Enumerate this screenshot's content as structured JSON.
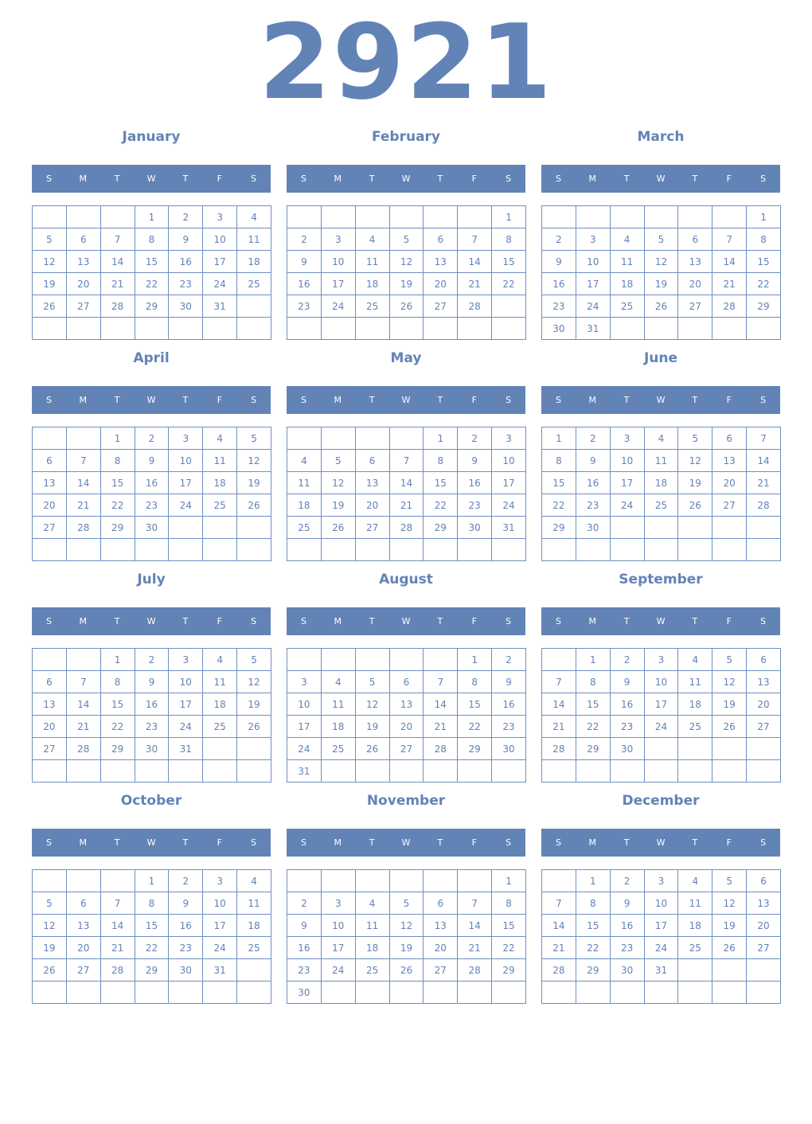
{
  "year": "2921",
  "weekdays": [
    "S",
    "M",
    "T",
    "W",
    "T",
    "F",
    "S"
  ],
  "colors": {
    "accent": "#6283b6",
    "header_text": "#ffffff"
  },
  "months": [
    {
      "name": "January",
      "weeks": [
        [
          null,
          null,
          null,
          1,
          2,
          3,
          4
        ],
        [
          5,
          6,
          7,
          8,
          9,
          10,
          11
        ],
        [
          12,
          13,
          14,
          15,
          16,
          17,
          18
        ],
        [
          19,
          20,
          21,
          22,
          23,
          24,
          25
        ],
        [
          26,
          27,
          28,
          29,
          30,
          31,
          null
        ],
        [
          null,
          null,
          null,
          null,
          null,
          null,
          null
        ]
      ]
    },
    {
      "name": "February",
      "weeks": [
        [
          null,
          null,
          null,
          null,
          null,
          null,
          1
        ],
        [
          2,
          3,
          4,
          5,
          6,
          7,
          8
        ],
        [
          9,
          10,
          11,
          12,
          13,
          14,
          15
        ],
        [
          16,
          17,
          18,
          19,
          20,
          21,
          22
        ],
        [
          23,
          24,
          25,
          26,
          27,
          28,
          null
        ],
        [
          null,
          null,
          null,
          null,
          null,
          null,
          null
        ]
      ]
    },
    {
      "name": "March",
      "weeks": [
        [
          null,
          null,
          null,
          null,
          null,
          null,
          1
        ],
        [
          2,
          3,
          4,
          5,
          6,
          7,
          8
        ],
        [
          9,
          10,
          11,
          12,
          13,
          14,
          15
        ],
        [
          16,
          17,
          18,
          19,
          20,
          21,
          22
        ],
        [
          23,
          24,
          25,
          26,
          27,
          28,
          29
        ],
        [
          30,
          31,
          null,
          null,
          null,
          null,
          null
        ]
      ]
    },
    {
      "name": "April",
      "weeks": [
        [
          null,
          null,
          1,
          2,
          3,
          4,
          5
        ],
        [
          6,
          7,
          8,
          9,
          10,
          11,
          12
        ],
        [
          13,
          14,
          15,
          16,
          17,
          18,
          19
        ],
        [
          20,
          21,
          22,
          23,
          24,
          25,
          26
        ],
        [
          27,
          28,
          29,
          30,
          null,
          null,
          null
        ],
        [
          null,
          null,
          null,
          null,
          null,
          null,
          null
        ]
      ]
    },
    {
      "name": "May",
      "weeks": [
        [
          null,
          null,
          null,
          null,
          1,
          2,
          3
        ],
        [
          4,
          5,
          6,
          7,
          8,
          9,
          10
        ],
        [
          11,
          12,
          13,
          14,
          15,
          16,
          17
        ],
        [
          18,
          19,
          20,
          21,
          22,
          23,
          24
        ],
        [
          25,
          26,
          27,
          28,
          29,
          30,
          31
        ],
        [
          null,
          null,
          null,
          null,
          null,
          null,
          null
        ]
      ]
    },
    {
      "name": "June",
      "weeks": [
        [
          1,
          2,
          3,
          4,
          5,
          6,
          7
        ],
        [
          8,
          9,
          10,
          11,
          12,
          13,
          14
        ],
        [
          15,
          16,
          17,
          18,
          19,
          20,
          21
        ],
        [
          22,
          23,
          24,
          25,
          26,
          27,
          28
        ],
        [
          29,
          30,
          null,
          null,
          null,
          null,
          null
        ],
        [
          null,
          null,
          null,
          null,
          null,
          null,
          null
        ]
      ]
    },
    {
      "name": "July",
      "weeks": [
        [
          null,
          null,
          1,
          2,
          3,
          4,
          5
        ],
        [
          6,
          7,
          8,
          9,
          10,
          11,
          12
        ],
        [
          13,
          14,
          15,
          16,
          17,
          18,
          19
        ],
        [
          20,
          21,
          22,
          23,
          24,
          25,
          26
        ],
        [
          27,
          28,
          29,
          30,
          31,
          null,
          null
        ],
        [
          null,
          null,
          null,
          null,
          null,
          null,
          null
        ]
      ]
    },
    {
      "name": "August",
      "weeks": [
        [
          null,
          null,
          null,
          null,
          null,
          1,
          2
        ],
        [
          3,
          4,
          5,
          6,
          7,
          8,
          9
        ],
        [
          10,
          11,
          12,
          13,
          14,
          15,
          16
        ],
        [
          17,
          18,
          19,
          20,
          21,
          22,
          23
        ],
        [
          24,
          25,
          26,
          27,
          28,
          29,
          30
        ],
        [
          31,
          null,
          null,
          null,
          null,
          null,
          null
        ]
      ]
    },
    {
      "name": "September",
      "weeks": [
        [
          null,
          1,
          2,
          3,
          4,
          5,
          6
        ],
        [
          7,
          8,
          9,
          10,
          11,
          12,
          13
        ],
        [
          14,
          15,
          16,
          17,
          18,
          19,
          20
        ],
        [
          21,
          22,
          23,
          24,
          25,
          26,
          27
        ],
        [
          28,
          29,
          30,
          null,
          null,
          null,
          null
        ],
        [
          null,
          null,
          null,
          null,
          null,
          null,
          null
        ]
      ]
    },
    {
      "name": "October",
      "weeks": [
        [
          null,
          null,
          null,
          1,
          2,
          3,
          4
        ],
        [
          5,
          6,
          7,
          8,
          9,
          10,
          11
        ],
        [
          12,
          13,
          14,
          15,
          16,
          17,
          18
        ],
        [
          19,
          20,
          21,
          22,
          23,
          24,
          25
        ],
        [
          26,
          27,
          28,
          29,
          30,
          31,
          null
        ],
        [
          null,
          null,
          null,
          null,
          null,
          null,
          null
        ]
      ]
    },
    {
      "name": "November",
      "weeks": [
        [
          null,
          null,
          null,
          null,
          null,
          null,
          1
        ],
        [
          2,
          3,
          4,
          5,
          6,
          7,
          8
        ],
        [
          9,
          10,
          11,
          12,
          13,
          14,
          15
        ],
        [
          16,
          17,
          18,
          19,
          20,
          21,
          22
        ],
        [
          23,
          24,
          25,
          26,
          27,
          28,
          29
        ],
        [
          30,
          null,
          null,
          null,
          null,
          null,
          null
        ]
      ]
    },
    {
      "name": "December",
      "weeks": [
        [
          null,
          1,
          2,
          3,
          4,
          5,
          6
        ],
        [
          7,
          8,
          9,
          10,
          11,
          12,
          13
        ],
        [
          14,
          15,
          16,
          17,
          18,
          19,
          20
        ],
        [
          21,
          22,
          23,
          24,
          25,
          26,
          27
        ],
        [
          28,
          29,
          30,
          31,
          null,
          null,
          null
        ],
        [
          null,
          null,
          null,
          null,
          null,
          null,
          null
        ]
      ]
    }
  ]
}
